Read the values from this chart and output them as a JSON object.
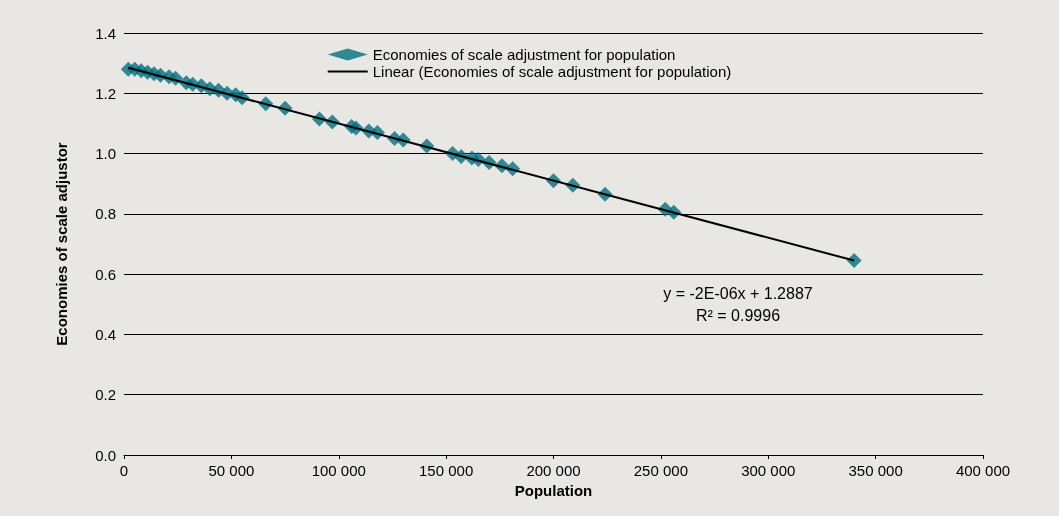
{
  "chart_data": {
    "type": "scatter",
    "xlabel": "Population",
    "ylabel": "Economies of scale adjustor",
    "series": [
      {
        "name": "Economies of scale adjustment for population",
        "marker": "diamond",
        "color": "#00707f",
        "x": [
          2000,
          5000,
          8000,
          11000,
          14000,
          17000,
          21000,
          24000,
          29000,
          32000,
          36000,
          40000,
          44000,
          48000,
          52000,
          55000,
          66000,
          75000,
          91000,
          97000,
          106000,
          108000,
          114000,
          118000,
          126000,
          130000,
          141000,
          153000,
          157000,
          162000,
          165000,
          170000,
          176000,
          181000,
          200000,
          209000,
          224000,
          252000,
          256000,
          340000
        ],
        "values": [
          1.28,
          1.28,
          1.275,
          1.27,
          1.265,
          1.26,
          1.255,
          1.25,
          1.235,
          1.23,
          1.225,
          1.215,
          1.21,
          1.2,
          1.195,
          1.185,
          1.165,
          1.15,
          1.115,
          1.105,
          1.09,
          1.085,
          1.075,
          1.07,
          1.05,
          1.045,
          1.025,
          1.0,
          0.99,
          0.985,
          0.98,
          0.97,
          0.96,
          0.95,
          0.91,
          0.895,
          0.865,
          0.815,
          0.805,
          0.645
        ]
      },
      {
        "name": "Linear (Economies of scale adjustment for population)",
        "type": "line",
        "marker": "none",
        "line_style": "solid",
        "color": "#000000",
        "x": [
          2000,
          340000
        ],
        "values": [
          1.285,
          0.645
        ]
      }
    ],
    "xlim": [
      0,
      400000
    ],
    "xticks": [
      0,
      {
        "value": 50000,
        "label": "50 000"
      },
      {
        "value": 100000,
        "label": "100 000"
      },
      {
        "value": 150000,
        "label": "150 000"
      },
      {
        "value": 200000,
        "label": "200 000"
      },
      {
        "value": 250000,
        "label": "250 000"
      },
      {
        "value": 300000,
        "label": "300 000"
      },
      {
        "value": 350000,
        "label": "350 000"
      },
      {
        "value": 400000,
        "label": "400 000"
      }
    ],
    "ylim": [
      0,
      1.4
    ],
    "yticks": [
      {
        "value": 0,
        "label": "0.0"
      },
      {
        "value": 0.2,
        "label": "0.2"
      },
      {
        "value": 0.4,
        "label": "0.4"
      },
      {
        "value": 0.6,
        "label": "0.6"
      },
      {
        "value": 0.8,
        "label": "0.8"
      },
      {
        "value": 1,
        "label": "1.0"
      },
      {
        "value": 1.2,
        "label": "1.2"
      },
      {
        "value": 1.4,
        "label": "1.4"
      }
    ],
    "grid": "y",
    "legend": "top",
    "annotations": [
      "y = -2E-06x + 1.2887",
      "R² = 0.9996"
    ]
  }
}
